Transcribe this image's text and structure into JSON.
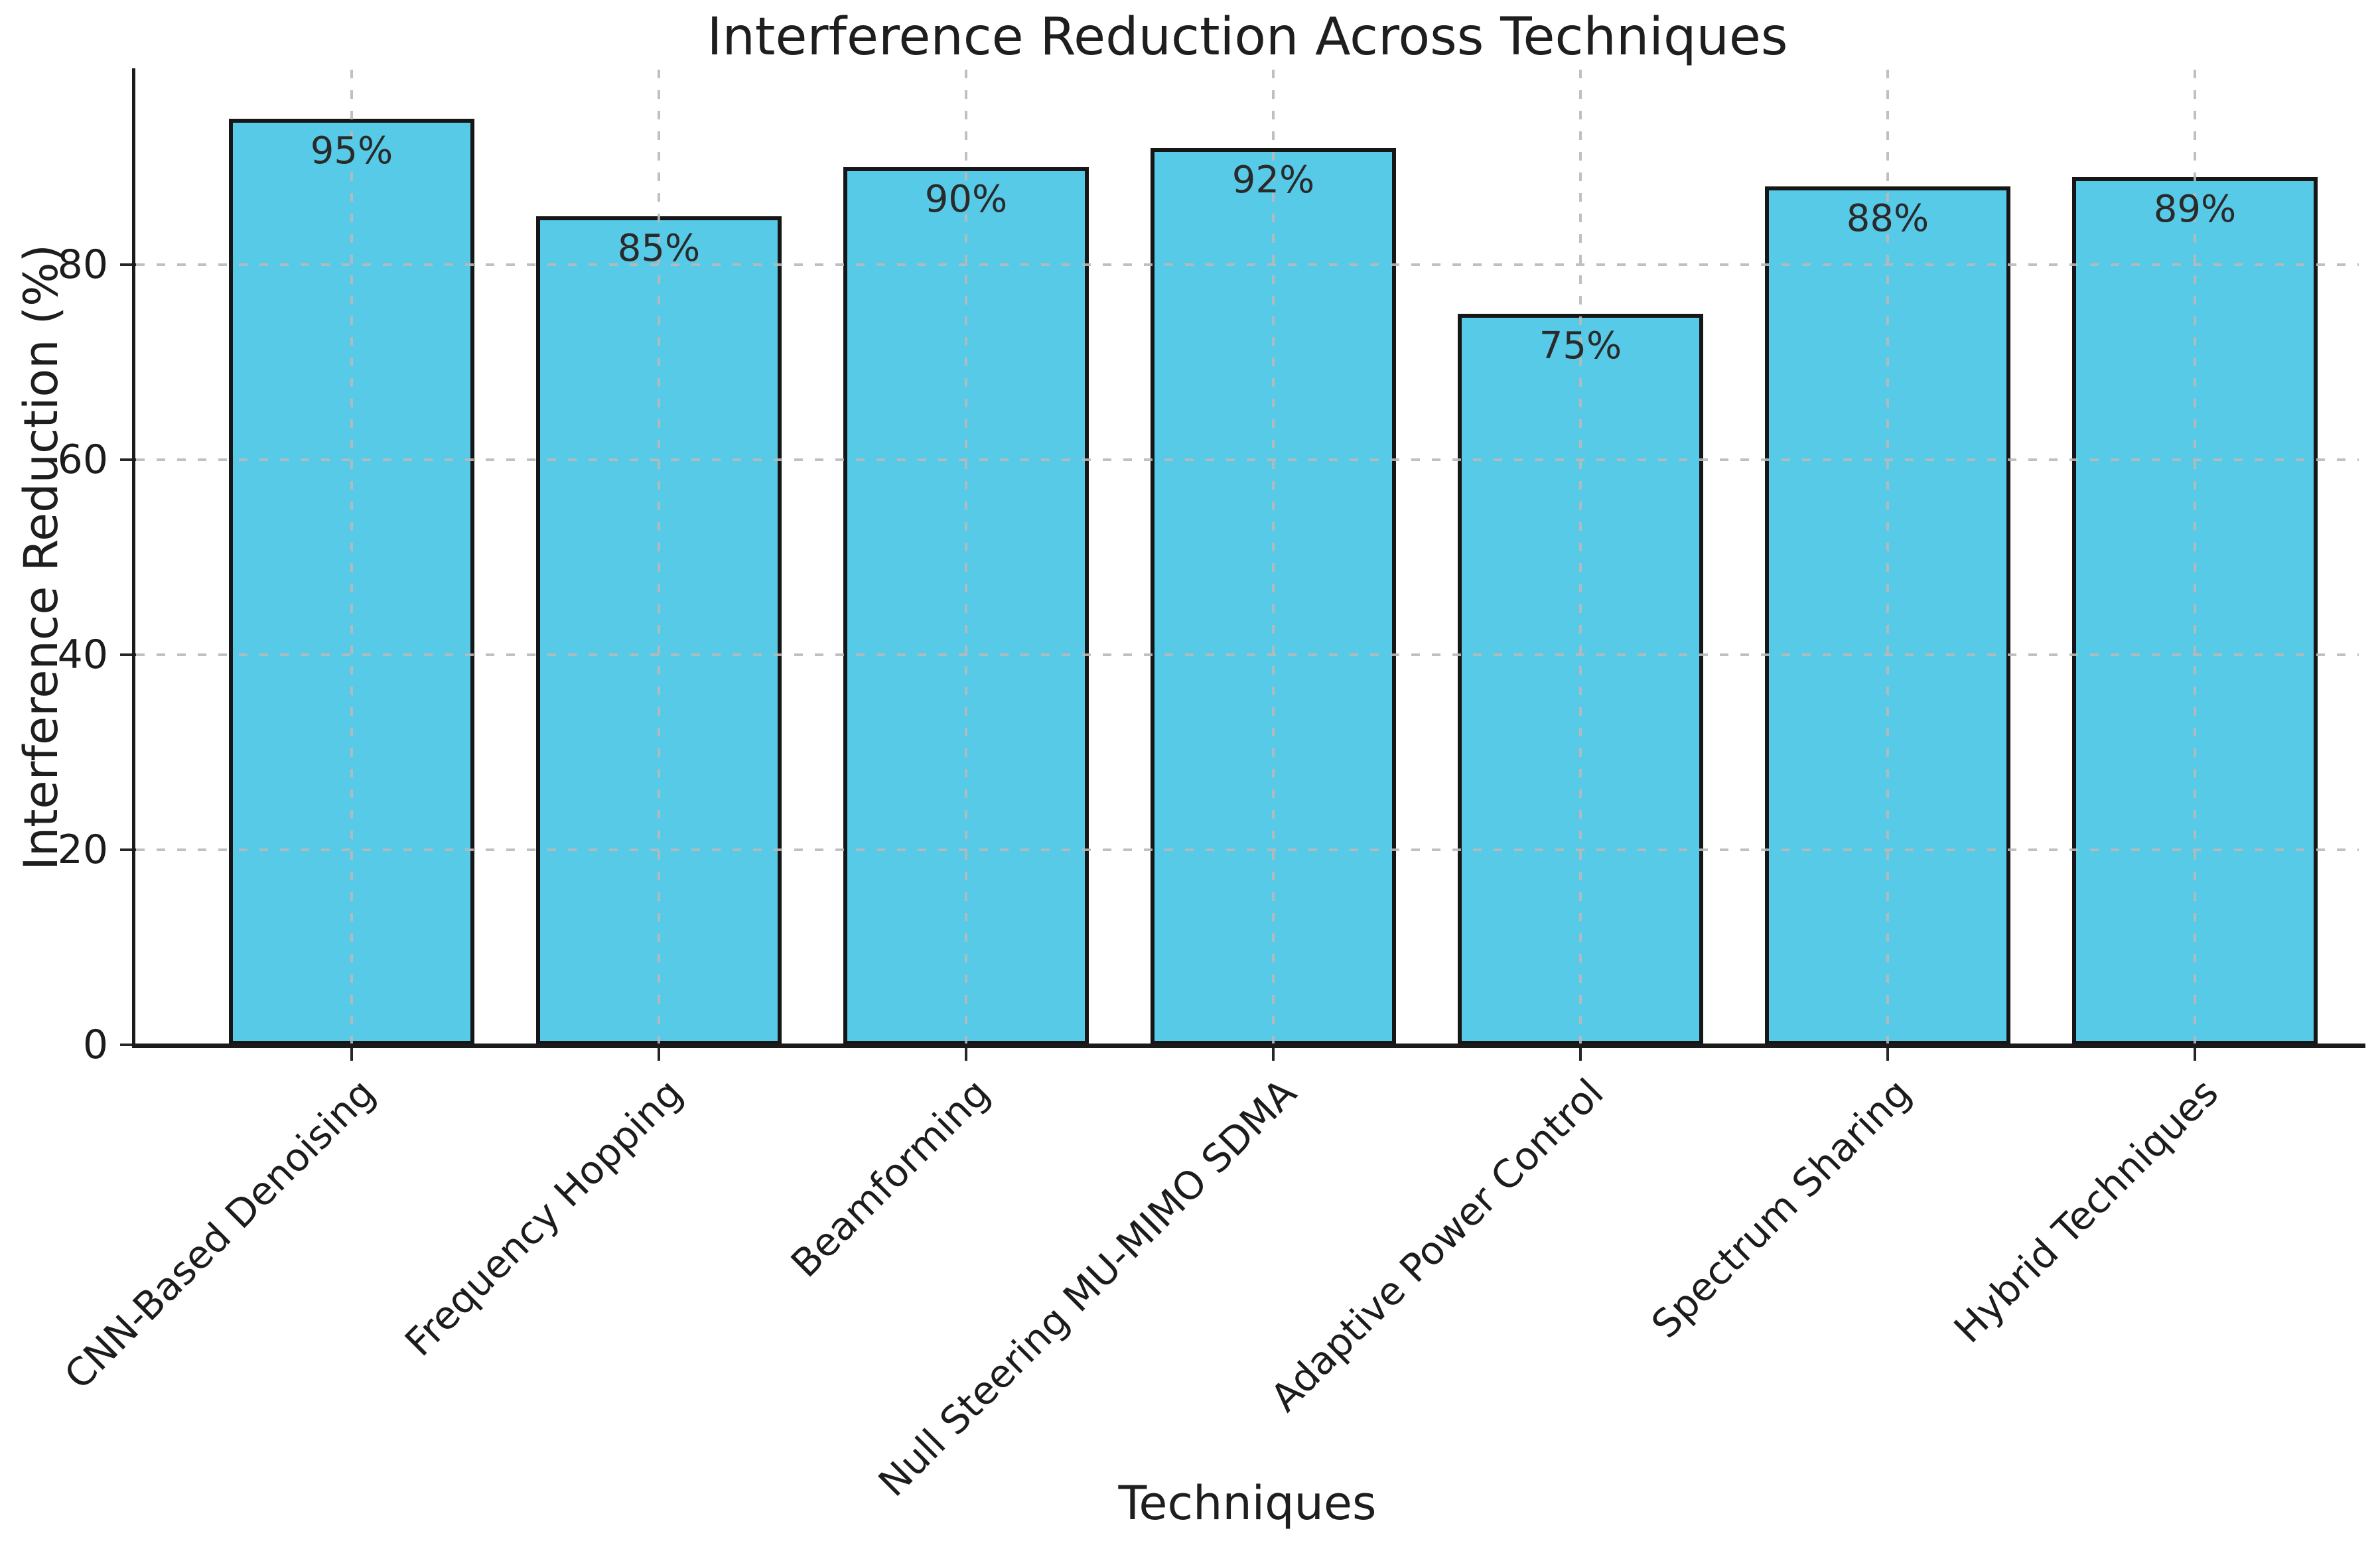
{
  "chart_data": {
    "type": "bar",
    "title": "Interference Reduction Across Techniques",
    "xlabel": "Techniques",
    "ylabel": "Interference Reduction (%)",
    "categories": [
      "CNN-Based Denoising",
      "Frequency Hopping",
      "Beamforming",
      "Null Steering MU-MIMO SDMA",
      "Adaptive Power Control",
      "Spectrum Sharing",
      "Hybrid Techniques"
    ],
    "values": [
      95,
      85,
      90,
      92,
      75,
      88,
      89
    ],
    "bar_labels": [
      "95%",
      "85%",
      "90%",
      "92%",
      "75%",
      "88%",
      "89%"
    ],
    "ylim": [
      0,
      100
    ],
    "yticks": [
      0,
      20,
      40,
      60,
      80
    ],
    "grid": {
      "style": "dashed",
      "axes": "both",
      "over_bars": true
    },
    "legend_position": "none",
    "colors": {
      "bar_fill": "#57CAE8",
      "bar_edge": "#161616",
      "grid": "#b9b9b9",
      "text": "#1c1c1c",
      "background": "#ffffff"
    }
  }
}
